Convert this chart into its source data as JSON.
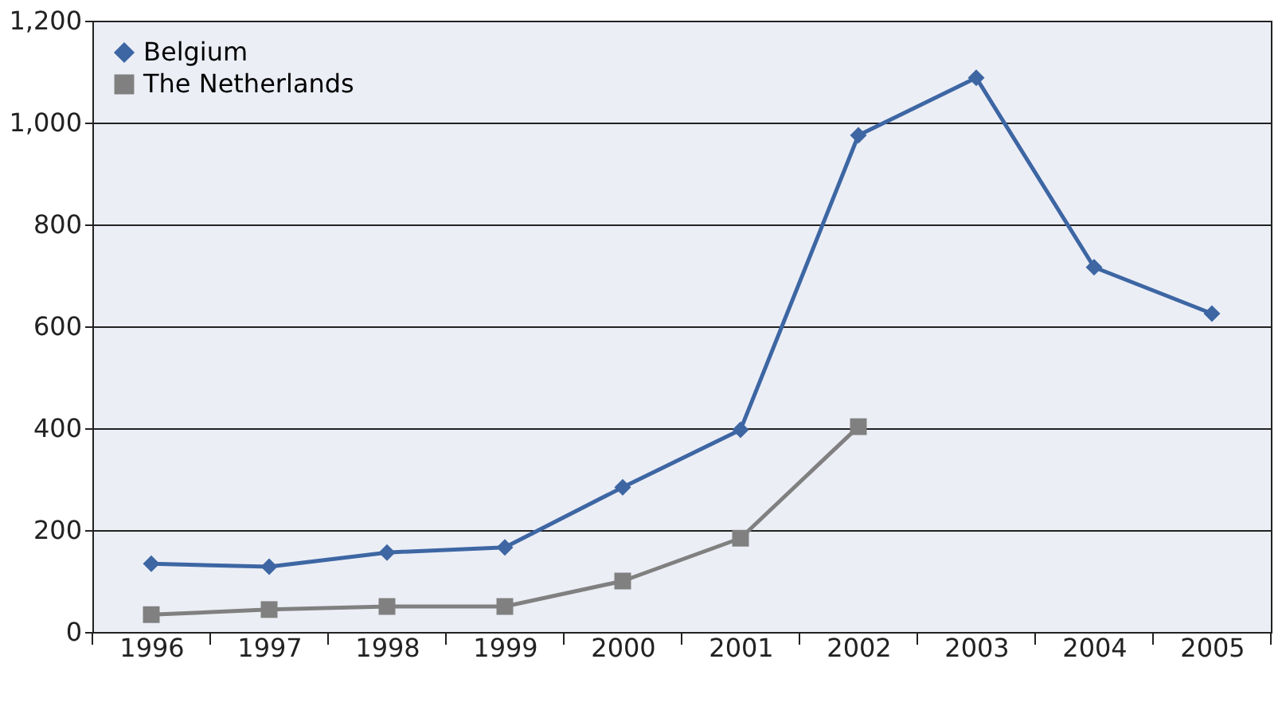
{
  "chart_data": {
    "type": "line",
    "categories": [
      "1996",
      "1997",
      "1998",
      "1999",
      "2000",
      "2001",
      "2002",
      "2003",
      "2004",
      "2005"
    ],
    "series": [
      {
        "name": "Belgium",
        "color": "#3d66a3",
        "marker": "diamond",
        "values": [
          134,
          128,
          156,
          166,
          284,
          397,
          975,
          1088,
          716,
          625
        ]
      },
      {
        "name": "The Netherlands",
        "color": "#808080",
        "marker": "square",
        "values": [
          34,
          44,
          50,
          50,
          100,
          184,
          403,
          null,
          null,
          null
        ]
      }
    ],
    "ylim": [
      0,
      1200
    ],
    "yticks": [
      {
        "value": 0,
        "label": "0"
      },
      {
        "value": 200,
        "label": "200"
      },
      {
        "value": 400,
        "label": "400"
      },
      {
        "value": 600,
        "label": "600"
      },
      {
        "value": 800,
        "label": "800"
      },
      {
        "value": 1000,
        "label": "1,000"
      },
      {
        "value": 1200,
        "label": "1,200"
      }
    ],
    "grid": "y",
    "legend": "top left",
    "line_style": "solid"
  }
}
